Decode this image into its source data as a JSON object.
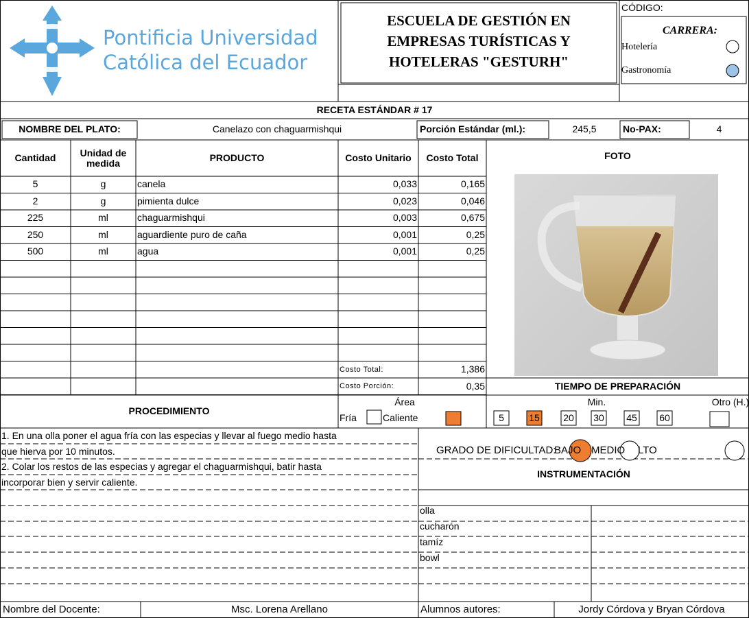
{
  "header": {
    "university": [
      "Pontificia Universidad",
      "Católica del Ecuador"
    ],
    "school": [
      "ESCUELA DE GESTIÓN EN",
      "EMPRESAS TURÍSTICAS Y",
      "HOTELERAS \"GESTURH\""
    ],
    "code_label": "CÓDIGO:",
    "career_label": "CARRERA:",
    "careers": [
      "Hotelería",
      "Gastronomía"
    ]
  },
  "recipe_title": "RECETA ESTÁNDAR # 17",
  "dish": {
    "label": "NOMBRE DEL PLATO:",
    "name": "Canelazo con chaguarmishqui",
    "portion_label": "Porción Estándar (ml.):",
    "portion": "245,5",
    "pax_label": "No-PAX:",
    "pax": "4"
  },
  "table": {
    "headers": [
      "Cantidad",
      "Unidad de medida",
      "PRODUCTO",
      "Costo Unitario",
      "Costo Total"
    ],
    "photo_label": "FOTO",
    "rows": [
      [
        "5",
        "g",
        "canela",
        "0,033",
        "0,165"
      ],
      [
        "2",
        "g",
        "pimienta dulce",
        "0,023",
        "0,046"
      ],
      [
        "225",
        "ml",
        "chaguarmishqui",
        "0,003",
        "0,675"
      ],
      [
        "250",
        "ml",
        "aguardiente puro de caña",
        "0,001",
        "0,25"
      ],
      [
        "500",
        "ml",
        "agua",
        "0,001",
        "0,25"
      ]
    ],
    "total_label": "Costo Total:",
    "total": "1,386",
    "portion_cost_label": "Costo Porción:",
    "portion_cost": "0,35"
  },
  "time": {
    "title": "TIEMPO DE PREPARACIÓN",
    "min_label": "Min.",
    "other_label": "Otro (H.)",
    "options": [
      "5",
      "15",
      "20",
      "30",
      "45",
      "60"
    ]
  },
  "procedure": {
    "title": "PROCEDIMIENTO",
    "area_label": "Área",
    "cold": "Fría",
    "hot": "Caliente",
    "lines": [
      "1. En una olla poner el agua fría con las especias y llevar al fuego medio hasta",
      "que hierva por 10 minutos.",
      "2. Colar los restos de las especias y agregar el chaguarmishqui, batir  hasta",
      "incorporar bien y servir caliente."
    ]
  },
  "difficulty": {
    "label": "GRADO DE DIFICULTAD:",
    "levels": [
      "BAJO",
      "MEDIO",
      "LTO"
    ]
  },
  "instruments": {
    "title": "INSTRUMENTACIÓN",
    "items": [
      "olla",
      "cucharón",
      "tamíz",
      "bowl"
    ]
  },
  "footer": {
    "teacher_label": "Nombre del Docente:",
    "teacher": "Msc. Lorena Arellano",
    "authors_label": "Alumnos autores:",
    "authors": "Jordy Córdova y Bryan Córdova"
  }
}
